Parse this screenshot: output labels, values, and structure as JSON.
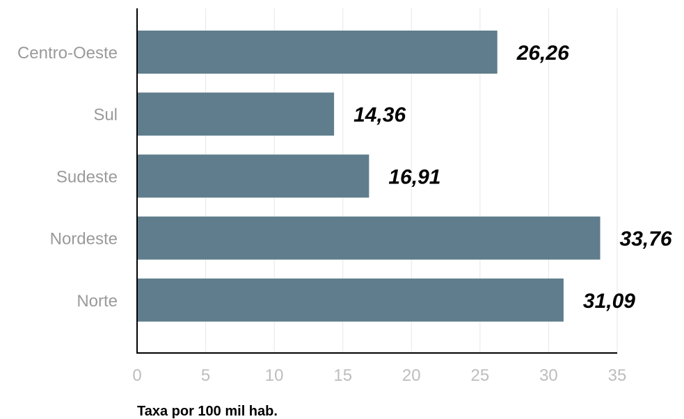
{
  "chart_data": {
    "type": "bar",
    "orientation": "horizontal",
    "categories": [
      "Centro-Oeste",
      "Sul",
      "Sudeste",
      "Nordeste",
      "Norte"
    ],
    "values": [
      26.26,
      14.36,
      16.91,
      33.76,
      31.09
    ],
    "value_labels": [
      "26,26",
      "14,36",
      "16,91",
      "33,76",
      "31,09"
    ],
    "xlabel": "Taxa por 100 mil hab.",
    "xlim": [
      0,
      35
    ],
    "xticks": [
      0,
      5,
      10,
      15,
      20,
      25,
      30,
      35
    ],
    "grid": true,
    "bar_color": "#5f7d8c"
  }
}
